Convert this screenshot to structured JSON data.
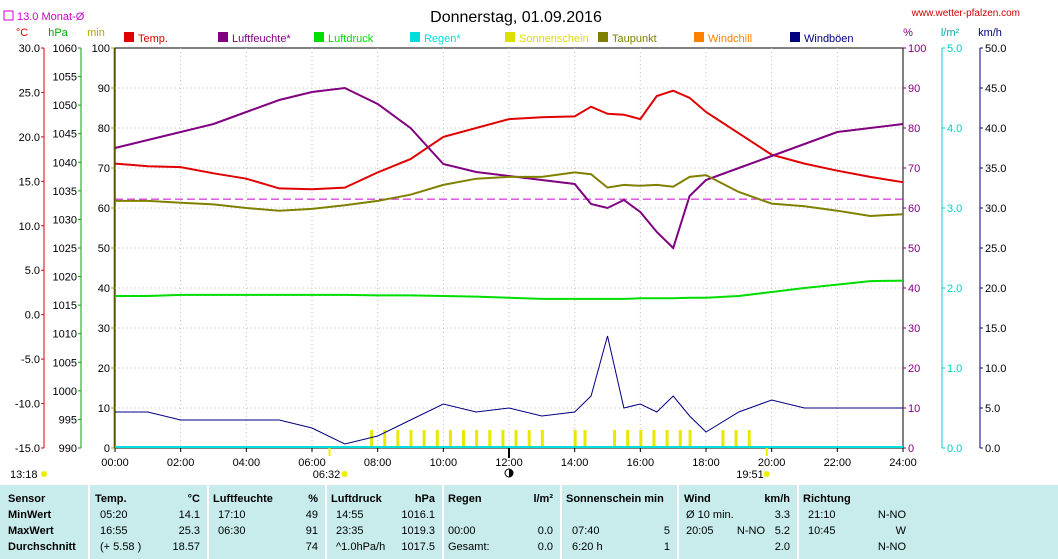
{
  "title": "Donnerstag, 01.09.2016",
  "website": "www.wetter-pfalzen.com",
  "monthly_avg_label": "13.0 Monat-Ø",
  "units_left": [
    "°C",
    "hPa",
    "min"
  ],
  "units_right": [
    "%",
    "l/m²",
    "km/h"
  ],
  "legend": [
    {
      "label": "Temp.",
      "color": "#e00000"
    },
    {
      "label": "Luftfeuchte*",
      "color": "#800080"
    },
    {
      "label": "Luftdruck",
      "color": "#00dd00"
    },
    {
      "label": "Regen*",
      "color": "#00dddd"
    },
    {
      "label": "Sonnenschein",
      "color": "#dddd00"
    },
    {
      "label": "Taupunkt",
      "color": "#808000"
    },
    {
      "label": "Windchill",
      "color": "#ff8000"
    },
    {
      "label": "Windböen",
      "color": "#000080"
    }
  ],
  "axis_ticks": {
    "temp": [
      "30.0",
      "25.0",
      "20.0",
      "15.0",
      "10.0",
      "5.0",
      "0.0",
      "-5.0",
      "-10.0",
      "-15.0"
    ],
    "pressure": [
      "1060",
      "1055",
      "1050",
      "1045",
      "1040",
      "1035",
      "1030",
      "1025",
      "1020",
      "1015",
      "1010",
      "1005",
      "1000",
      "995",
      "990"
    ],
    "sunmin": [
      "100",
      "90",
      "80",
      "70",
      "60",
      "50",
      "40",
      "30",
      "20",
      "10",
      "0"
    ],
    "humidity": [
      "100",
      "90",
      "80",
      "70",
      "60",
      "50",
      "40",
      "30",
      "20",
      "10",
      "0"
    ],
    "rain": [
      "5.0",
      "4.0",
      "3.0",
      "2.0",
      "1.0",
      "0.0"
    ],
    "wind": [
      "50.0",
      "45.0",
      "40.0",
      "35.0",
      "30.0",
      "25.0",
      "20.0",
      "15.0",
      "10.0",
      "5.0",
      "0.0"
    ],
    "x": [
      "00:00",
      "02:00",
      "04:00",
      "06:00",
      "08:00",
      "10:00",
      "12:00",
      "14:00",
      "16:00",
      "18:00",
      "20:00",
      "22:00",
      "24:00"
    ]
  },
  "sun_times": {
    "sunrise": "06:32",
    "sunset": "19:51",
    "noon": "13:18"
  },
  "chart_data": {
    "type": "line",
    "x_unit": "hour",
    "x": [
      0,
      1,
      2,
      3,
      4,
      5,
      6,
      7,
      8,
      9,
      10,
      11,
      12,
      13,
      14,
      14.5,
      15,
      15.5,
      16,
      16.5,
      17,
      17.5,
      18,
      19,
      20,
      21,
      22,
      23,
      24
    ],
    "xlim": [
      0,
      24
    ],
    "series": [
      {
        "name": "Temp.",
        "axis": "temp",
        "ylim": [
          -15,
          30
        ],
        "values": [
          17.0,
          16.7,
          16.6,
          15.9,
          15.3,
          14.2,
          14.1,
          14.3,
          16.0,
          17.5,
          20.0,
          21.0,
          22.0,
          22.2,
          22.3,
          23.4,
          22.6,
          22.5,
          22.0,
          24.6,
          25.2,
          24.4,
          22.8,
          20.4,
          18.0,
          17.0,
          16.2,
          15.5,
          14.9
        ]
      },
      {
        "name": "Luftfeuchte*",
        "axis": "humidity",
        "ylim": [
          0,
          100
        ],
        "values": [
          75,
          77,
          79,
          81,
          84,
          87,
          89,
          90,
          86,
          80,
          71,
          69,
          68,
          67,
          66,
          61,
          60,
          62,
          59,
          54,
          50,
          63,
          67,
          70,
          73,
          76,
          79,
          80,
          81
        ]
      },
      {
        "name": "Luftdruck",
        "axis": "pressure",
        "ylim": [
          990,
          1060
        ],
        "values": [
          1016.6,
          1016.6,
          1016.8,
          1016.8,
          1016.8,
          1016.8,
          1016.8,
          1016.8,
          1016.7,
          1016.7,
          1016.6,
          1016.5,
          1016.3,
          1016.1,
          1016.1,
          1016.1,
          1016.1,
          1016.1,
          1016.2,
          1016.2,
          1016.2,
          1016.3,
          1016.3,
          1016.6,
          1017.3,
          1018.0,
          1018.6,
          1019.2,
          1019.3
        ]
      },
      {
        "name": "Taupunkt",
        "axis": "temp",
        "ylim": [
          -15,
          30
        ],
        "values": [
          12.8,
          12.8,
          12.6,
          12.4,
          12.0,
          11.7,
          11.9,
          12.3,
          12.8,
          13.5,
          14.6,
          15.3,
          15.5,
          15.5,
          16.0,
          15.8,
          14.3,
          14.6,
          14.5,
          14.6,
          14.4,
          15.5,
          15.7,
          13.8,
          12.5,
          12.2,
          11.7,
          11.1,
          11.3
        ]
      },
      {
        "name": "Windböen",
        "axis": "wind",
        "ylim": [
          0,
          50
        ],
        "values": [
          4.5,
          4.5,
          3.5,
          3.5,
          3.5,
          3.5,
          2.5,
          0.5,
          1.5,
          3.5,
          5.5,
          4.5,
          5.0,
          4.0,
          4.5,
          6.5,
          14.0,
          5.0,
          5.5,
          4.5,
          6.5,
          4.0,
          2.0,
          4.5,
          6.0,
          5.0,
          5.0,
          5.0,
          5.0
        ]
      }
    ],
    "sunshine_minutes_hours": [
      7.8,
      8.2,
      8.6,
      9.0,
      9.4,
      9.8,
      10.2,
      10.6,
      11.0,
      11.4,
      11.8,
      12.2,
      12.6,
      13.0,
      14.0,
      14.3,
      15.2,
      15.6,
      16.0,
      16.4,
      16.8,
      17.2,
      17.5,
      18.5,
      18.9,
      19.3
    ],
    "monthly_avg_temp": 13.0
  },
  "stats": {
    "headers": {
      "sensor": "Sensor",
      "temp": "Temp.",
      "temp_unit": "°C",
      "hum": "Luftfeuchte",
      "hum_unit": "%",
      "press": "Luftdruck",
      "press_unit": "hPa",
      "rain": "Regen",
      "rain_unit": "l/m²",
      "sun": "Sonnenschein min",
      "wind": "Wind",
      "wind_unit": "km/h",
      "dir": "Richtung"
    },
    "rows": [
      {
        "label": "MinWert",
        "temp_time": "05:20",
        "temp_val": "14.1",
        "hum_time": "17:10",
        "hum_val": "49",
        "press_time": "14:55",
        "press_val": "1016.1",
        "rain_time": "",
        "rain_val": "",
        "sun_time": "",
        "sun_val": "",
        "wind_time": "Ø 10 min.",
        "wind_dir": "",
        "wind_val": "3.3",
        "dir_time": "21:10",
        "dir_val": "N-NO"
      },
      {
        "label": "MaxWert",
        "temp_time": "16:55",
        "temp_val": "25.3",
        "hum_time": "06:30",
        "hum_val": "91",
        "press_time": "23:35",
        "press_val": "1019.3",
        "rain_time": "00:00",
        "rain_val": "0.0",
        "sun_time": "07:40",
        "sun_val": "5",
        "wind_time": "20:05",
        "wind_dir": "N-NO",
        "wind_val": "5.2",
        "dir_time": "10:45",
        "dir_val": "W"
      },
      {
        "label": "Durchschnitt",
        "temp_time": "(+ 5.58 )",
        "temp_val": "18.57",
        "hum_time": "",
        "hum_val": "74",
        "press_time": "^1.0hPa/h",
        "press_val": "1017.5",
        "rain_time": "Gesamt:",
        "rain_val": "0.0",
        "sun_time": "6:20 h",
        "sun_val": "1",
        "wind_time": "",
        "wind_dir": "",
        "wind_val": "2.0",
        "dir_time": "",
        "dir_val": "N-NO"
      }
    ]
  }
}
